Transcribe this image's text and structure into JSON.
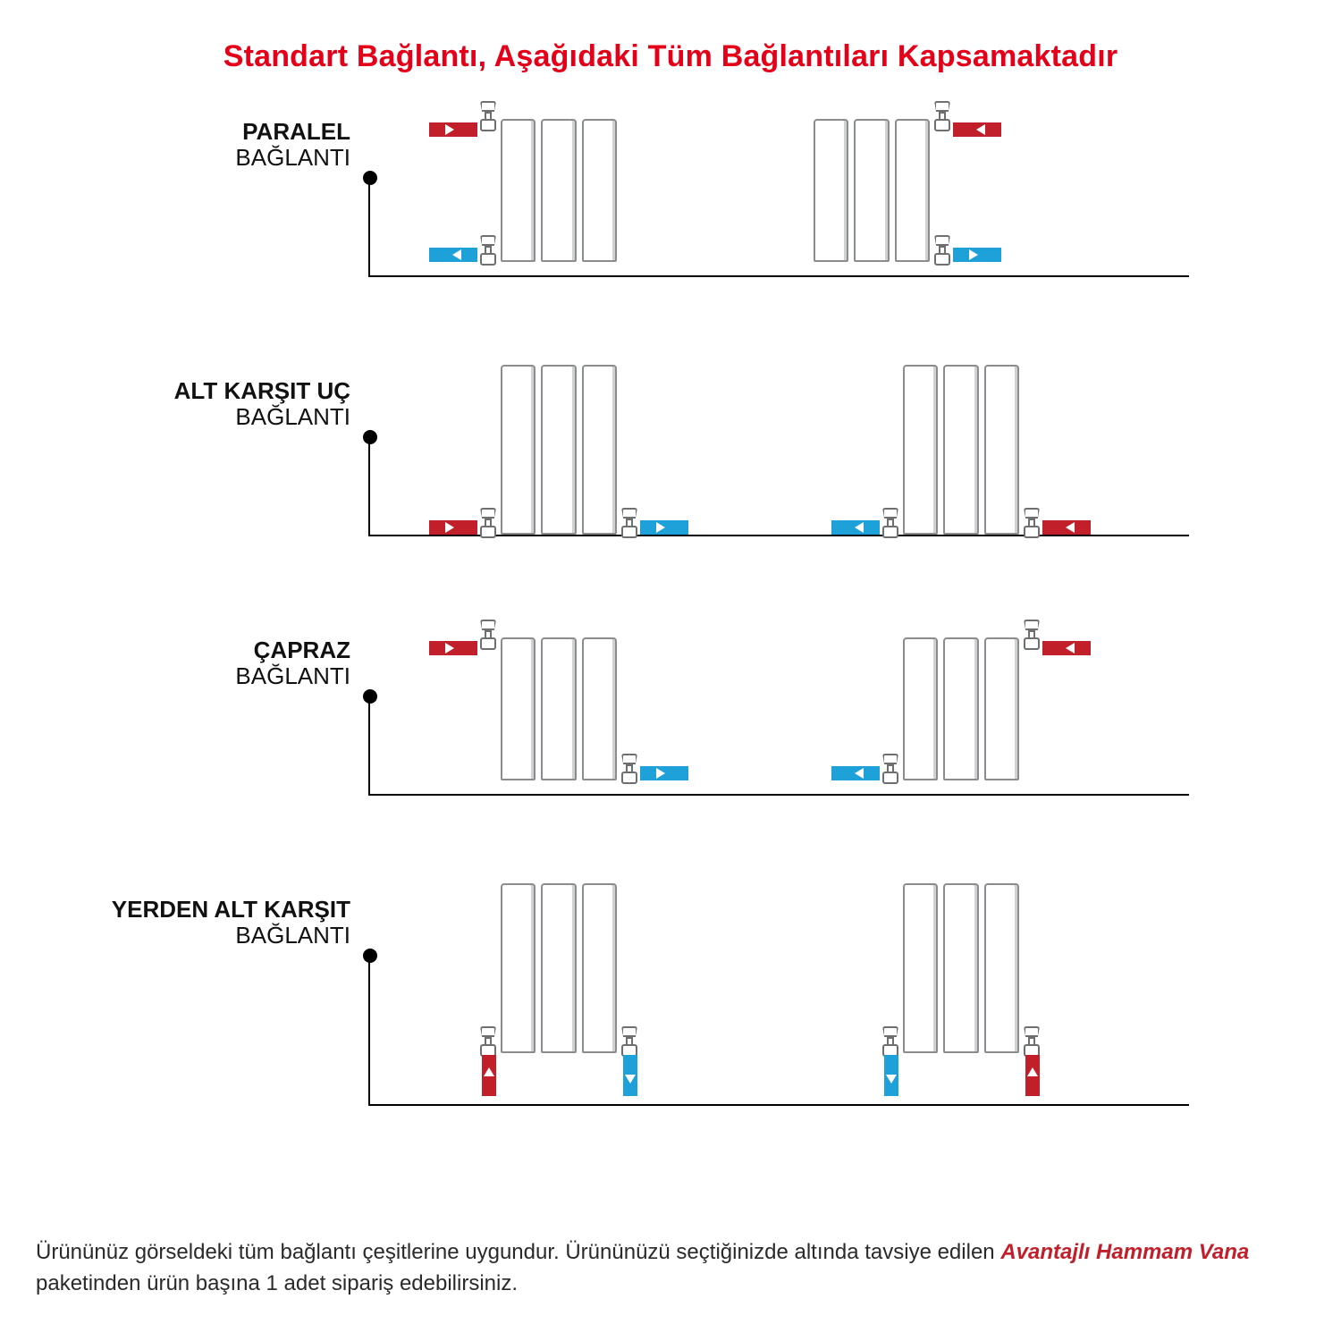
{
  "colors": {
    "title": "#e50019",
    "hot": "#c1202b",
    "cold": "#1ea0d8",
    "panel_border": "#8a8c8e",
    "text": "#111111",
    "rule": "#000000",
    "bg": "#ffffff"
  },
  "title": "Standart Bağlantı, Aşağıdaki Tüm Bağlantıları Kapsamaktadır",
  "rows": [
    {
      "name_bold": "PARALEL",
      "name_light": "BAĞLANTI",
      "rad_style": "short",
      "left": {
        "rad_side": "right",
        "pipes": [
          {
            "color": "red",
            "y": "top",
            "side": "left",
            "dir": "right"
          },
          {
            "color": "blue",
            "y": "bottom",
            "side": "left",
            "dir": "left"
          }
        ],
        "valves": [
          {
            "y": "top",
            "side": "left"
          },
          {
            "y": "bottom",
            "side": "left"
          }
        ]
      },
      "right": {
        "rad_side": "left",
        "pipes": [
          {
            "color": "red",
            "y": "top",
            "side": "right",
            "dir": "left"
          },
          {
            "color": "blue",
            "y": "bottom",
            "side": "right",
            "dir": "right"
          }
        ],
        "valves": [
          {
            "y": "top",
            "side": "right"
          },
          {
            "y": "bottom",
            "side": "right"
          }
        ]
      }
    },
    {
      "name_bold": "ALT KARŞIT UÇ",
      "name_light": "BAĞLANTI",
      "rad_style": "tall",
      "left": {
        "rad_side": "center",
        "pipes": [
          {
            "color": "red",
            "y": "bottom",
            "side": "left",
            "dir": "right"
          },
          {
            "color": "blue",
            "y": "bottom",
            "side": "right",
            "dir": "right"
          }
        ],
        "valves": [
          {
            "y": "bottom",
            "side": "left"
          },
          {
            "y": "bottom",
            "side": "right"
          }
        ]
      },
      "right": {
        "rad_side": "center",
        "pipes": [
          {
            "color": "blue",
            "y": "bottom",
            "side": "left",
            "dir": "left"
          },
          {
            "color": "red",
            "y": "bottom",
            "side": "right",
            "dir": "left"
          }
        ],
        "valves": [
          {
            "y": "bottom",
            "side": "left"
          },
          {
            "y": "bottom",
            "side": "right"
          }
        ]
      }
    },
    {
      "name_bold": "ÇAPRAZ",
      "name_light": "BAĞLANTI",
      "rad_style": "short",
      "left": {
        "rad_side": "center",
        "pipes": [
          {
            "color": "red",
            "y": "top",
            "side": "left",
            "dir": "right"
          },
          {
            "color": "blue",
            "y": "bottom",
            "side": "right",
            "dir": "right"
          }
        ],
        "valves": [
          {
            "y": "top",
            "side": "left"
          },
          {
            "y": "bottom",
            "side": "right"
          }
        ]
      },
      "right": {
        "rad_side": "center",
        "pipes": [
          {
            "color": "red",
            "y": "top",
            "side": "right",
            "dir": "left"
          },
          {
            "color": "blue",
            "y": "bottom",
            "side": "left",
            "dir": "left"
          }
        ],
        "valves": [
          {
            "y": "top",
            "side": "right"
          },
          {
            "y": "bottom",
            "side": "left"
          }
        ]
      }
    },
    {
      "name_bold": "YERDEN ALT KARŞIT",
      "name_light": "BAĞLANTI",
      "rad_style": "tall",
      "vertical": true,
      "left": {
        "rad_side": "center",
        "vpipes": [
          {
            "color": "red",
            "side": "left",
            "dir": "up"
          },
          {
            "color": "blue",
            "side": "right",
            "dir": "down"
          }
        ],
        "valves": [
          {
            "y": "bottom",
            "side": "left"
          },
          {
            "y": "bottom",
            "side": "right"
          }
        ]
      },
      "right": {
        "rad_side": "center",
        "vpipes": [
          {
            "color": "blue",
            "side": "left",
            "dir": "down"
          },
          {
            "color": "red",
            "side": "right",
            "dir": "up"
          }
        ],
        "valves": [
          {
            "y": "bottom",
            "side": "left"
          },
          {
            "y": "bottom",
            "side": "right"
          }
        ]
      }
    }
  ],
  "footer_plain_1": "Ürününüz görseldeki tüm bağlantı çeşitlerine uygundur. Ürününüzü seçtiğinizde altında tavsiye edilen ",
  "footer_highlight": "Avantajlı Hammam Vana",
  "footer_plain_2": " paketinden ürün başına 1 adet sipariş edebilirsiniz."
}
